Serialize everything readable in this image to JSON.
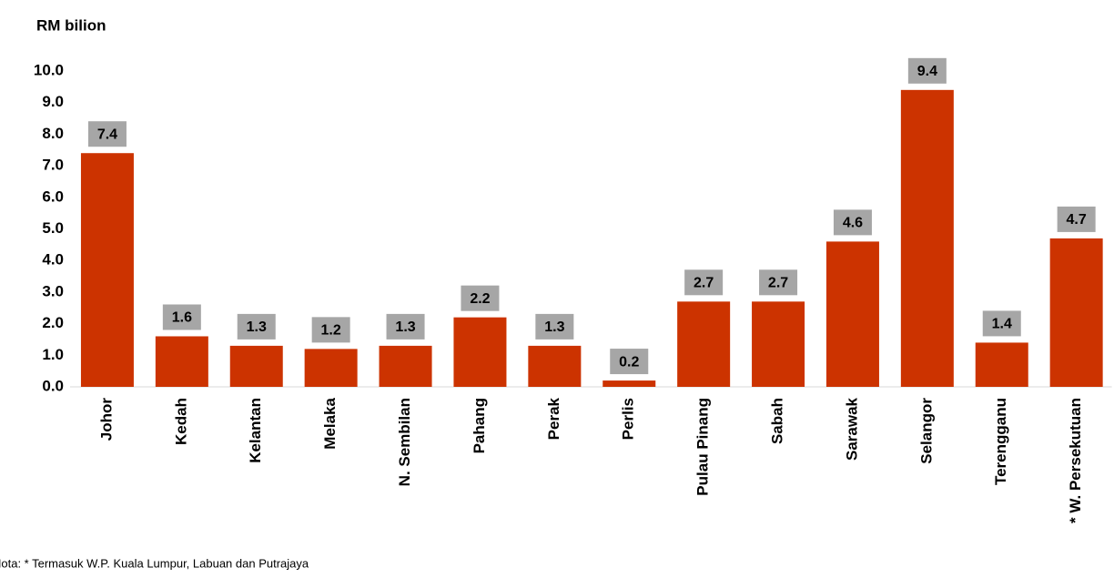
{
  "chart_data": {
    "type": "bar",
    "y_label": "RM bilion",
    "categories": [
      "Johor",
      "Kedah",
      "Kelantan",
      "Melaka",
      "N. Sembilan",
      "Pahang",
      "Perak",
      "Perlis",
      "Pulau Pinang",
      "Sabah",
      "Sarawak",
      "Selangor",
      "Terengganu",
      "* W. Persekutuan"
    ],
    "values": [
      7.4,
      1.6,
      1.3,
      1.2,
      1.3,
      2.2,
      1.3,
      0.2,
      2.7,
      2.7,
      4.6,
      9.4,
      1.4,
      4.7
    ],
    "color": "#cc3300",
    "label_box_color": "#a6a6a6",
    "ylim": [
      0,
      10
    ],
    "yticks": [
      {
        "value": 0,
        "label": "0.0"
      },
      {
        "value": 1,
        "label": "1.0"
      },
      {
        "value": 2,
        "label": "2.0"
      },
      {
        "value": 3,
        "label": "3.0"
      },
      {
        "value": 4,
        "label": "4.0"
      },
      {
        "value": 5,
        "label": "5.0"
      },
      {
        "value": 6,
        "label": "6.0"
      },
      {
        "value": 7,
        "label": "7.0"
      },
      {
        "value": 8,
        "label": "8.0"
      },
      {
        "value": 9,
        "label": "9.0"
      },
      {
        "value": 10,
        "label": "10.0"
      }
    ],
    "note": "Nota: * Termasuk W.P. Kuala Lumpur, Labuan dan Putrajaya"
  }
}
